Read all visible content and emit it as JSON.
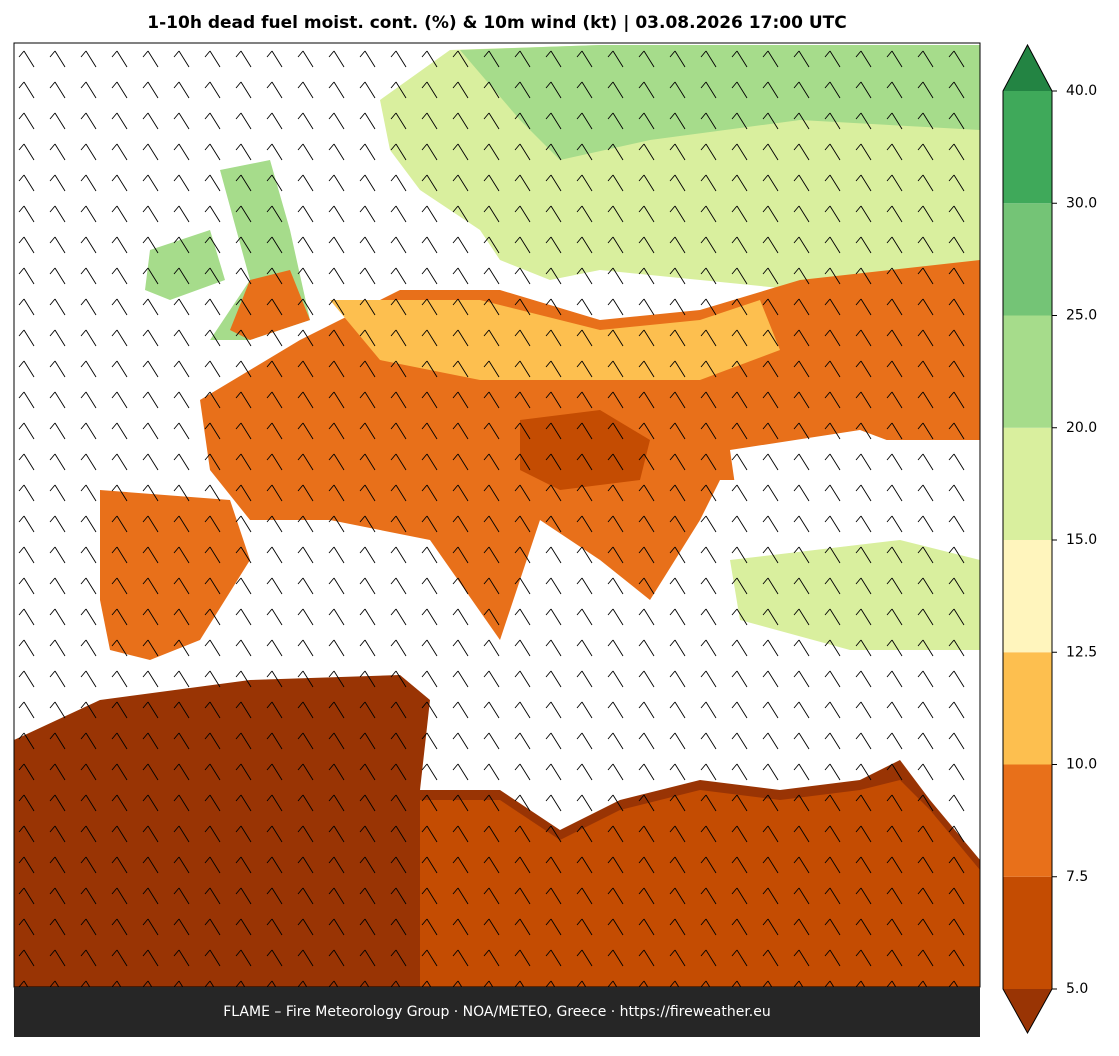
{
  "header": {
    "title": "1-10h dead fuel moist. cont. (%) & 10m wind (kt)  |  03.08.2026 17:00 UTC"
  },
  "footer": {
    "text": "FLAME – Fire Meteorology Group · NOA/METEO, Greece · https://fireweather.eu"
  },
  "colorbar": {
    "levels": [
      {
        "value": 5,
        "label": "5.0"
      },
      {
        "value": 7.5,
        "label": "7.5"
      },
      {
        "value": 10,
        "label": "10.0"
      },
      {
        "value": 12.5,
        "label": "12.5"
      },
      {
        "value": 15,
        "label": "15.0"
      },
      {
        "value": 20,
        "label": "20.0"
      },
      {
        "value": 25,
        "label": "25.0"
      },
      {
        "value": 30,
        "label": "30.0"
      },
      {
        "value": 40,
        "label": "40.0"
      }
    ],
    "colors": [
      "#c44c02",
      "#e8701a",
      "#fdbf4f",
      "#fff5bd",
      "#d9ef9e",
      "#a6dc8b",
      "#74c476",
      "#3fa95a"
    ],
    "extend_min_color": "#993404",
    "extend_max_color": "#238443"
  }
}
